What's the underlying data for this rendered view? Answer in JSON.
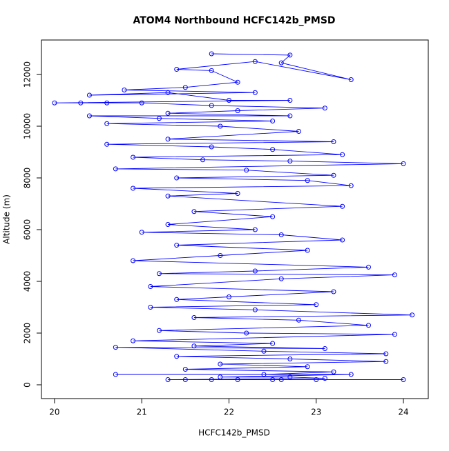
{
  "chart_data": {
    "type": "line",
    "title": "ATOM4 Northbound HCFC142b_PMSD",
    "x_label": "HCFC142b_PMSD",
    "y_label": "Altitude (m)",
    "color": "#0000ff",
    "markers": true,
    "x": [
      21.8,
      22.7,
      22.6,
      23.4,
      22.3,
      21.4,
      21.8,
      22.1,
      21.5,
      20.8,
      22.3,
      20.4,
      21.3,
      22.0,
      22.7,
      20.0,
      20.3,
      20.6,
      21.0,
      21.8,
      23.1,
      22.1,
      21.3,
      22.7,
      20.4,
      21.2,
      22.5,
      20.6,
      21.9,
      22.8,
      21.3,
      23.2,
      20.6,
      21.8,
      22.5,
      23.3,
      20.9,
      21.7,
      22.7,
      24.0,
      20.7,
      22.2,
      23.2,
      21.4,
      22.9,
      23.4,
      20.9,
      22.1,
      21.3,
      23.3,
      21.6,
      22.5,
      21.3,
      22.3,
      21.0,
      22.6,
      23.3,
      21.4,
      22.9,
      21.9,
      20.9,
      23.6,
      22.3,
      21.2,
      23.9,
      22.6,
      21.1,
      23.2,
      22.0,
      21.4,
      23.0,
      21.1,
      22.3,
      24.1,
      21.6,
      22.8,
      23.6,
      21.2,
      22.2,
      23.9,
      20.9,
      22.5,
      21.6,
      23.1,
      20.7,
      22.4,
      23.8,
      21.4,
      22.7,
      23.8,
      21.9,
      22.9,
      21.5,
      23.2,
      22.4,
      20.7,
      23.4,
      21.9,
      22.7,
      23.1,
      21.3,
      22.1,
      22.6,
      24.0,
      21.5,
      23.0,
      22.5,
      21.8
    ],
    "values": [
      12800,
      12750,
      12450,
      11800,
      12500,
      12200,
      12150,
      11700,
      11500,
      11400,
      11300,
      11200,
      11300,
      11000,
      11000,
      10900,
      10900,
      10900,
      10900,
      10800,
      10700,
      10600,
      10500,
      10400,
      10400,
      10300,
      10200,
      10100,
      10000,
      9800,
      9500,
      9400,
      9300,
      9200,
      9100,
      8900,
      8800,
      8700,
      8650,
      8550,
      8350,
      8300,
      8100,
      8000,
      7900,
      7700,
      7600,
      7400,
      7300,
      6900,
      6700,
      6500,
      6200,
      6000,
      5900,
      5800,
      5600,
      5400,
      5200,
      5000,
      4800,
      4550,
      4400,
      4300,
      4250,
      4100,
      3800,
      3600,
      3400,
      3300,
      3100,
      3000,
      2900,
      2700,
      2600,
      2500,
      2300,
      2100,
      2000,
      1950,
      1700,
      1600,
      1500,
      1400,
      1450,
      1300,
      1200,
      1100,
      1000,
      900,
      800,
      700,
      600,
      500,
      400,
      400,
      400,
      300,
      300,
      250,
      200,
      200,
      200,
      200,
      200,
      200,
      200,
      200
    ],
    "xlim": [
      19.85,
      24.285
    ],
    "ylim": [
      -533,
      13333
    ],
    "xticks": [
      20,
      21,
      22,
      23,
      24
    ],
    "yticks": [
      0,
      2000,
      4000,
      6000,
      8000,
      10000,
      12000
    ]
  }
}
